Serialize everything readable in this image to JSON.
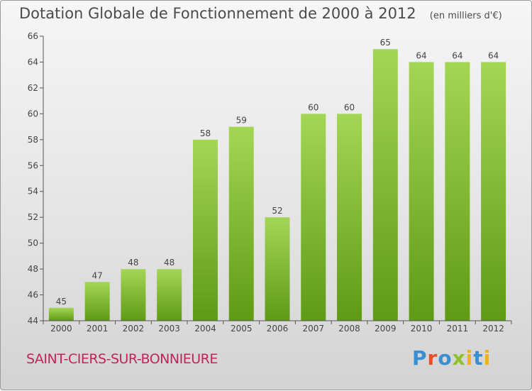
{
  "header": {
    "title": "Dotation Globale de Fonctionnement de 2000 à 2012",
    "unit": "(en milliers d'€)"
  },
  "footer": {
    "commune": "SAINT-CIERS-SUR-BONNIEURE",
    "brand": "Proxiti"
  },
  "colors": {
    "bar_light": "#a4d655",
    "bar_dark": "#5f9a15",
    "axis": "#555555",
    "commune_text": "#c0245c"
  },
  "chart_data": {
    "type": "bar",
    "categories": [
      "2000",
      "2001",
      "2002",
      "2003",
      "2004",
      "2005",
      "2006",
      "2007",
      "2008",
      "2009",
      "2010",
      "2011",
      "2012"
    ],
    "values": [
      45,
      47,
      48,
      48,
      58,
      59,
      52,
      60,
      60,
      65,
      64,
      64,
      64
    ],
    "ylim": [
      44,
      66
    ],
    "yticks": [
      44,
      46,
      48,
      50,
      52,
      54,
      56,
      58,
      60,
      62,
      64,
      66
    ],
    "grid": false,
    "data_labels": true
  }
}
